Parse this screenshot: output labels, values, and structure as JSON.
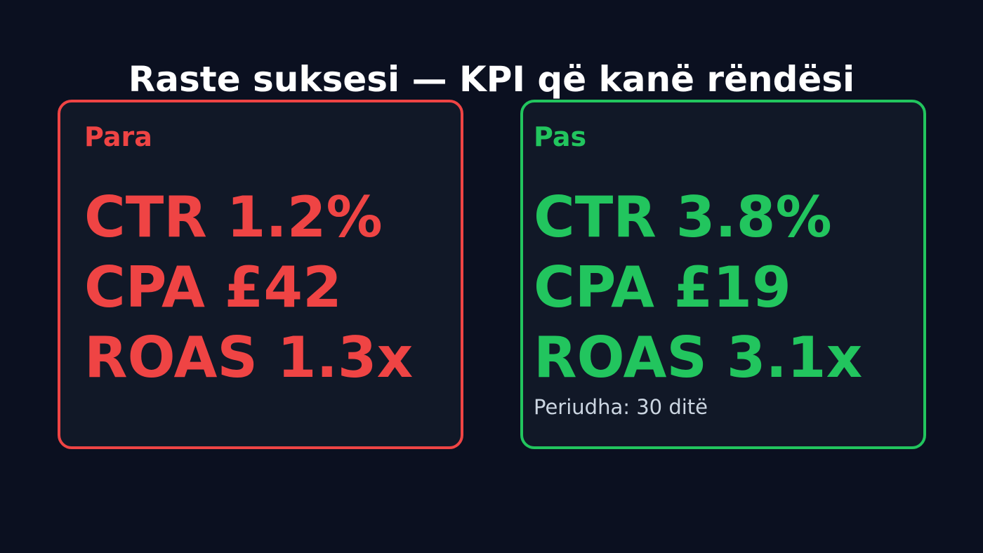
{
  "title": "Raste suksesi — KPI që kanë rëndësi",
  "colors": {
    "background": "#0b1020",
    "card": "#111827",
    "before": "#ef4444",
    "after": "#22c55e",
    "muted": "#cbd5e1",
    "title": "#ffffff"
  },
  "before": {
    "label": "Para",
    "metrics": [
      "CTR 1.2%",
      "CPA £42",
      "ROAS 1.3x"
    ]
  },
  "after": {
    "label": "Pas",
    "metrics": [
      "CTR 3.8%",
      "CPA £19",
      "ROAS 3.1x"
    ],
    "note": "Periudha: 30 ditë"
  }
}
